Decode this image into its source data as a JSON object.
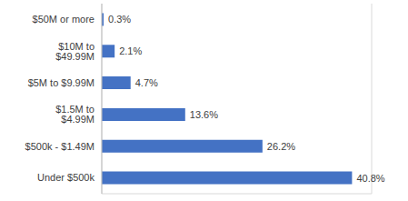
{
  "chart_data": {
    "type": "bar",
    "orientation": "horizontal",
    "categories": [
      "$50M or more",
      "$10M to $49.99M",
      "$5M to $9.99M",
      "$1.5M to $4.99M",
      "$500k - $1.49M",
      "Under $500k"
    ],
    "values": [
      0.3,
      2.1,
      4.7,
      13.6,
      26.2,
      40.8
    ],
    "value_labels": [
      "0.3%",
      "2.1%",
      "4.7%",
      "13.6%",
      "26.2%",
      "40.8%"
    ],
    "color": "#4472c4",
    "xlim": [
      0,
      44
    ],
    "xticks": [
      0,
      4,
      8,
      12,
      16,
      20,
      24,
      28,
      32,
      36,
      40,
      44
    ],
    "grid": true,
    "data_labels": true,
    "tick_labels": "y"
  }
}
